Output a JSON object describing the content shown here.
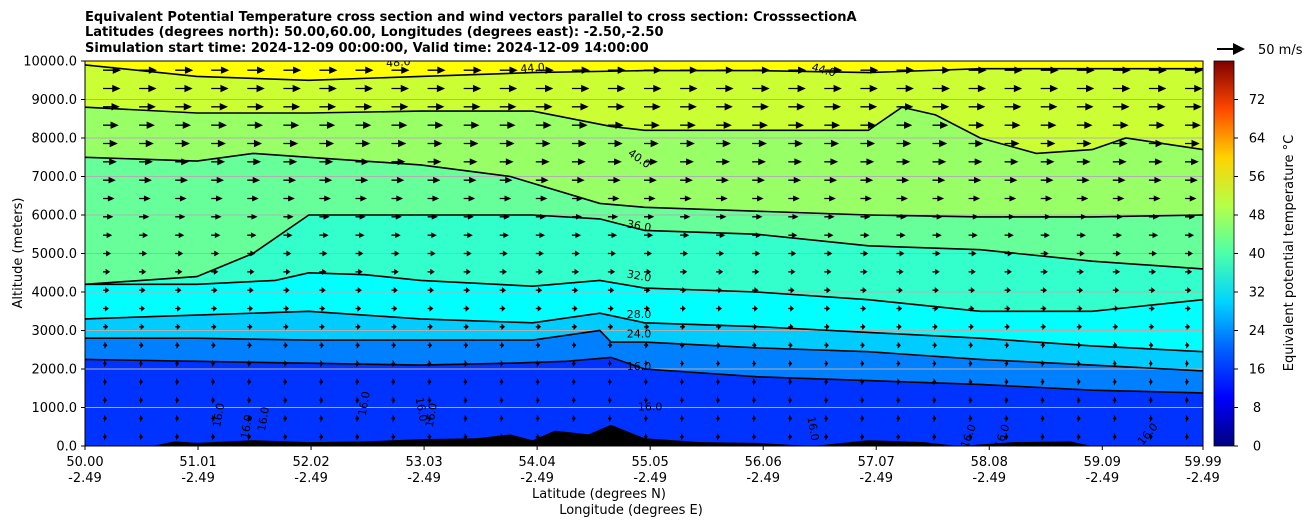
{
  "chart_data": {
    "type": "heatmap",
    "title_lines": [
      "Equivalent Potential Temperature cross section and wind vectors parallel to cross section: CrosssectionA",
      "Latitudes (degrees north): 50.00,60.00, Longitudes (degrees east): -2.50,-2.50",
      "Simulation start time: 2024-12-09 00:00:00, Valid time: 2024-12-09 14:00:00"
    ],
    "ylabel": "Altitude (meters)",
    "xlabel_lines": [
      "Latitude (degrees N)",
      "Longitude (degrees E)"
    ],
    "xlim": [
      50.0,
      59.99
    ],
    "ylim": [
      0,
      10000
    ],
    "grid": "horizontal",
    "x_ticks": [
      {
        "lat": "50.00",
        "lon": "-2.49",
        "value": 50.0
      },
      {
        "lat": "51.01",
        "lon": "-2.49",
        "value": 51.01
      },
      {
        "lat": "52.02",
        "lon": "-2.49",
        "value": 52.02
      },
      {
        "lat": "53.03",
        "lon": "-2.49",
        "value": 53.03
      },
      {
        "lat": "54.04",
        "lon": "-2.49",
        "value": 54.04
      },
      {
        "lat": "55.05",
        "lon": "-2.49",
        "value": 55.05
      },
      {
        "lat": "56.06",
        "lon": "-2.49",
        "value": 56.06
      },
      {
        "lat": "57.07",
        "lon": "-2.49",
        "value": 57.07
      },
      {
        "lat": "58.08",
        "lon": "-2.49",
        "value": 58.08
      },
      {
        "lat": "59.09",
        "lon": "-2.49",
        "value": 59.09
      },
      {
        "lat": "59.99",
        "lon": "-2.49",
        "value": 59.99
      }
    ],
    "y_ticks": [
      {
        "label": "0.0",
        "value": 0
      },
      {
        "label": "1000.0",
        "value": 1000
      },
      {
        "label": "2000.0",
        "value": 2000
      },
      {
        "label": "3000.0",
        "value": 3000
      },
      {
        "label": "4000.0",
        "value": 4000
      },
      {
        "label": "5000.0",
        "value": 5000
      },
      {
        "label": "6000.0",
        "value": 6000
      },
      {
        "label": "7000.0",
        "value": 7000
      },
      {
        "label": "8000.0",
        "value": 8000
      },
      {
        "label": "9000.0",
        "value": 9000
      },
      {
        "label": "10000.0",
        "value": 10000
      }
    ],
    "colorbar": {
      "label": "Equivalent potential temperature °C",
      "range": [
        0,
        80
      ],
      "ticks": [
        "0",
        "8",
        "16",
        "24",
        "32",
        "40",
        "48",
        "56",
        "64",
        "72"
      ],
      "tick_values": [
        0,
        8,
        16,
        24,
        32,
        40,
        48,
        56,
        64,
        72
      ],
      "colormap": "jet"
    },
    "wind_key": {
      "label": "50 m/s",
      "value": 50
    },
    "contours": [
      {
        "level": 16,
        "points": [
          [
            50.0,
            2250
          ],
          [
            51.0,
            2200
          ],
          [
            52.0,
            2150
          ],
          [
            53.0,
            2100
          ],
          [
            53.8,
            2150
          ],
          [
            54.3,
            2200
          ],
          [
            54.7,
            2300
          ],
          [
            55.0,
            2000
          ],
          [
            56.0,
            1800
          ],
          [
            57.0,
            1700
          ],
          [
            58.0,
            1600
          ],
          [
            59.0,
            1450
          ],
          [
            59.99,
            1380
          ]
        ]
      },
      {
        "level": 24,
        "points": [
          [
            50.0,
            2800
          ],
          [
            51.0,
            2800
          ],
          [
            52.0,
            2750
          ],
          [
            53.0,
            2750
          ],
          [
            54.0,
            2750
          ],
          [
            54.6,
            3000
          ],
          [
            54.7,
            2700
          ],
          [
            55.0,
            2700
          ],
          [
            56.0,
            2550
          ],
          [
            57.0,
            2450
          ],
          [
            58.0,
            2250
          ],
          [
            59.0,
            2100
          ],
          [
            59.99,
            1950
          ]
        ]
      },
      {
        "level": 28,
        "points": [
          [
            50.0,
            3300
          ],
          [
            51.0,
            3400
          ],
          [
            52.0,
            3500
          ],
          [
            53.0,
            3300
          ],
          [
            53.5,
            3250
          ],
          [
            54.0,
            3200
          ],
          [
            54.6,
            3450
          ],
          [
            55.0,
            3200
          ],
          [
            56.0,
            3100
          ],
          [
            57.0,
            2950
          ],
          [
            58.0,
            2800
          ],
          [
            59.0,
            2600
          ],
          [
            59.99,
            2450
          ]
        ]
      },
      {
        "level": 32,
        "points": [
          [
            50.0,
            4200
          ],
          [
            51.0,
            4200
          ],
          [
            51.7,
            4300
          ],
          [
            52.0,
            4500
          ],
          [
            52.5,
            4450
          ],
          [
            53.0,
            4300
          ],
          [
            54.0,
            4150
          ],
          [
            54.6,
            4300
          ],
          [
            55.0,
            4100
          ],
          [
            56.0,
            4000
          ],
          [
            57.0,
            3800
          ],
          [
            58.0,
            3500
          ],
          [
            59.0,
            3500
          ],
          [
            59.99,
            3800
          ]
        ]
      },
      {
        "level": 36,
        "points": [
          [
            50.0,
            4200
          ],
          [
            51.0,
            4400
          ],
          [
            51.5,
            5000
          ],
          [
            52.0,
            6000
          ],
          [
            53.0,
            6000
          ],
          [
            54.0,
            6000
          ],
          [
            54.6,
            5900
          ],
          [
            55.0,
            5600
          ],
          [
            56.0,
            5500
          ],
          [
            57.0,
            5200
          ],
          [
            58.0,
            5100
          ],
          [
            59.0,
            4800
          ],
          [
            59.99,
            4600
          ]
        ]
      },
      {
        "level": 40,
        "points": [
          [
            50.0,
            7500
          ],
          [
            51.0,
            7400
          ],
          [
            51.5,
            7600
          ],
          [
            52.0,
            7500
          ],
          [
            53.0,
            7300
          ],
          [
            53.8,
            7000
          ],
          [
            54.6,
            6300
          ],
          [
            55.0,
            6200
          ],
          [
            56.0,
            6100
          ],
          [
            57.0,
            6000
          ],
          [
            58.0,
            5950
          ],
          [
            59.0,
            5950
          ],
          [
            59.99,
            6000
          ]
        ]
      },
      {
        "level": 44,
        "points": [
          [
            50.0,
            8800
          ],
          [
            51.0,
            8650
          ],
          [
            52.0,
            8650
          ],
          [
            53.0,
            8700
          ],
          [
            54.0,
            8700
          ],
          [
            54.7,
            8300
          ],
          [
            55.0,
            8200
          ],
          [
            56.0,
            8200
          ],
          [
            57.0,
            8200
          ],
          [
            57.3,
            8800
          ],
          [
            57.6,
            8600
          ],
          [
            58.0,
            8000
          ],
          [
            58.5,
            7600
          ],
          [
            59.0,
            7700
          ],
          [
            59.3,
            8000
          ],
          [
            59.99,
            7700
          ]
        ]
      },
      {
        "level": 48,
        "points": [
          [
            50.0,
            9900
          ],
          [
            51.0,
            9600
          ],
          [
            52.0,
            9500
          ],
          [
            53.0,
            9600
          ],
          [
            54.0,
            9700
          ],
          [
            55.0,
            9750
          ],
          [
            56.0,
            9750
          ],
          [
            57.0,
            9700
          ],
          [
            58.0,
            9800
          ],
          [
            59.99,
            9800
          ]
        ]
      }
    ],
    "contour_labels": [
      {
        "text": "48.0",
        "x": 52.8,
        "y": 9950,
        "angle": -5
      },
      {
        "text": "44.0",
        "x": 54.0,
        "y": 9800,
        "angle": -5
      },
      {
        "text": "44.0",
        "x": 56.6,
        "y": 9750,
        "angle": 15
      },
      {
        "text": "40.0",
        "x": 54.95,
        "y": 7450,
        "angle": 35
      },
      {
        "text": "36.0",
        "x": 54.95,
        "y": 5700,
        "angle": 10
      },
      {
        "text": "32.0",
        "x": 54.95,
        "y": 4400,
        "angle": 10
      },
      {
        "text": "28.0",
        "x": 54.95,
        "y": 3400,
        "angle": 0
      },
      {
        "text": "24.0",
        "x": 54.95,
        "y": 2900,
        "angle": 0
      },
      {
        "text": "16.0",
        "x": 54.95,
        "y": 2050,
        "angle": 0
      },
      {
        "text": "16.0",
        "x": 55.05,
        "y": 1000,
        "angle": 0
      },
      {
        "text": "16.0",
        "x": 51.2,
        "y": 800,
        "angle": -80
      },
      {
        "text": "16.0",
        "x": 51.45,
        "y": 500,
        "angle": -80
      },
      {
        "text": "16.0",
        "x": 51.6,
        "y": 700,
        "angle": -80
      },
      {
        "text": "16.0",
        "x": 52.5,
        "y": 1100,
        "angle": -80
      },
      {
        "text": "16.0",
        "x": 53.0,
        "y": 950,
        "angle": 80
      },
      {
        "text": "16.0",
        "x": 53.1,
        "y": 800,
        "angle": -80
      },
      {
        "text": "16.0",
        "x": 56.5,
        "y": 450,
        "angle": 80
      },
      {
        "text": "16.0",
        "x": 57.9,
        "y": 250,
        "angle": -70
      },
      {
        "text": "16.0",
        "x": 58.2,
        "y": 250,
        "angle": -70
      },
      {
        "text": "16.0",
        "x": 59.5,
        "y": 300,
        "angle": -50
      }
    ],
    "terrain": [
      [
        50.0,
        0
      ],
      [
        50.6,
        0
      ],
      [
        50.8,
        120
      ],
      [
        51.0,
        80
      ],
      [
        51.5,
        150
      ],
      [
        52.0,
        100
      ],
      [
        52.5,
        120
      ],
      [
        53.0,
        180
      ],
      [
        53.5,
        200
      ],
      [
        53.8,
        300
      ],
      [
        54.0,
        150
      ],
      [
        54.2,
        400
      ],
      [
        54.5,
        300
      ],
      [
        54.7,
        550
      ],
      [
        55.0,
        200
      ],
      [
        55.5,
        100
      ],
      [
        56.0,
        80
      ],
      [
        56.5,
        0
      ],
      [
        57.0,
        150
      ],
      [
        57.5,
        100
      ],
      [
        57.8,
        0
      ],
      [
        58.3,
        100
      ],
      [
        58.8,
        120
      ],
      [
        59.0,
        0
      ],
      [
        59.99,
        0
      ]
    ],
    "wind_field": {
      "columns": 31,
      "rows": 21,
      "speed_by_altitude": [
        [
          0,
          2
        ],
        [
          1000,
          3
        ],
        [
          2000,
          5
        ],
        [
          3000,
          8
        ],
        [
          4000,
          10
        ],
        [
          5000,
          13
        ],
        [
          6000,
          17
        ],
        [
          7000,
          22
        ],
        [
          8000,
          26
        ],
        [
          9000,
          30
        ],
        [
          10000,
          32
        ]
      ]
    }
  }
}
